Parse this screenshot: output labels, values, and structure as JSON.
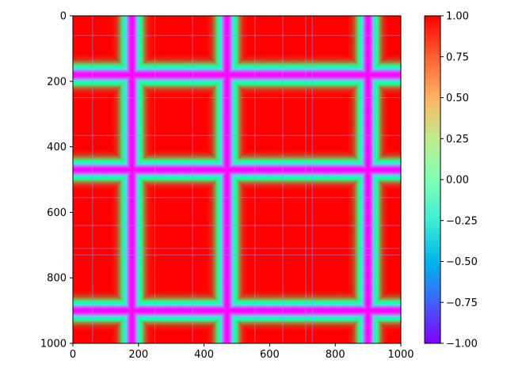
{
  "chart_data": {
    "type": "heatmap",
    "title": "",
    "xlabel": "",
    "ylabel": "",
    "xlim": [
      0,
      1000
    ],
    "ylim": [
      1000,
      0
    ],
    "x_ticks": [
      0,
      200,
      400,
      600,
      800,
      1000
    ],
    "y_ticks": [
      0,
      200,
      400,
      600,
      800,
      1000
    ],
    "x_tick_labels": [
      "0",
      "200",
      "400",
      "600",
      "800",
      "1000"
    ],
    "y_tick_labels": [
      "0",
      "200",
      "400",
      "600",
      "800",
      "1000"
    ],
    "colormap": "rainbow",
    "value_range": [
      -1.0,
      1.0
    ],
    "colorbar_ticks": [
      1.0,
      0.75,
      0.5,
      0.25,
      0.0,
      -0.25,
      -0.5,
      -0.75,
      -1.0
    ],
    "colorbar_tick_labels": [
      "1.00",
      "0.75",
      "0.50",
      "0.25",
      "0.00",
      "−0.25",
      "−0.50",
      "−0.75",
      "−1.00"
    ],
    "grid": false,
    "dominant_value": 1.0,
    "band_positions": [
      180,
      470,
      900
    ],
    "band_min_value": -1.0,
    "artifact_lines": [
      60,
      250,
      365,
      555,
      640,
      710,
      730
    ]
  }
}
